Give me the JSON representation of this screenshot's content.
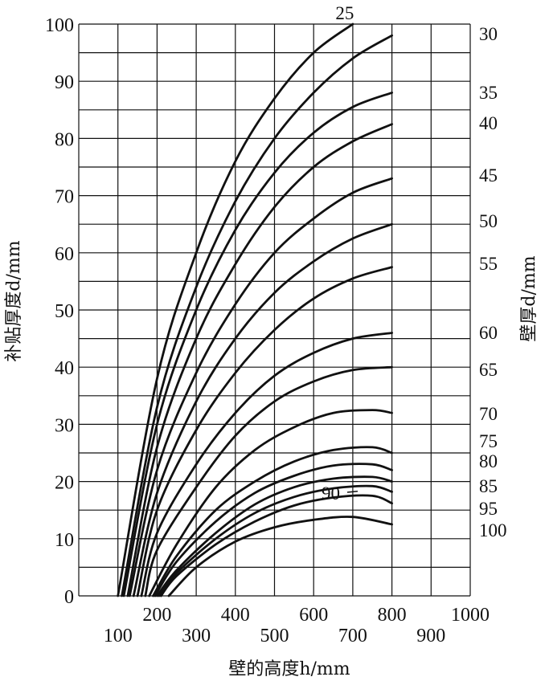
{
  "chart_data": {
    "type": "line",
    "xlabel": "壁的高度h/mm",
    "ylabel": "补贴厚度d/mm",
    "y2label": "壁厚d/mm",
    "xlim": [
      0,
      1000
    ],
    "ylim": [
      0,
      100
    ],
    "x_ticks_upper": [
      "200",
      "400",
      "600",
      "800",
      "1000"
    ],
    "x_ticks_lower": [
      "100",
      "300",
      "500",
      "700",
      "900"
    ],
    "y_ticks": [
      "0",
      "10",
      "20",
      "30",
      "40",
      "50",
      "60",
      "70",
      "80",
      "90",
      "100"
    ],
    "grid": true,
    "series": [
      {
        "name": "25",
        "points": [
          [
            100,
            0
          ],
          [
            200,
            38
          ],
          [
            300,
            60
          ],
          [
            400,
            76
          ],
          [
            500,
            87
          ],
          [
            600,
            95
          ],
          [
            700,
            100
          ]
        ]
      },
      {
        "name": "30",
        "points": [
          [
            110,
            0
          ],
          [
            200,
            33
          ],
          [
            300,
            54
          ],
          [
            400,
            69
          ],
          [
            500,
            80
          ],
          [
            600,
            88
          ],
          [
            700,
            94
          ],
          [
            800,
            98
          ]
        ]
      },
      {
        "name": "35",
        "points": [
          [
            115,
            0
          ],
          [
            200,
            30
          ],
          [
            300,
            50
          ],
          [
            400,
            64
          ],
          [
            500,
            74
          ],
          [
            600,
            81
          ],
          [
            700,
            85.5
          ],
          [
            800,
            88
          ]
        ]
      },
      {
        "name": "40",
        "points": [
          [
            125,
            0
          ],
          [
            200,
            26
          ],
          [
            300,
            45
          ],
          [
            400,
            58
          ],
          [
            500,
            68
          ],
          [
            600,
            75
          ],
          [
            700,
            79.5
          ],
          [
            800,
            82.5
          ]
        ]
      },
      {
        "name": "45",
        "points": [
          [
            130,
            0
          ],
          [
            200,
            22
          ],
          [
            300,
            39
          ],
          [
            400,
            51
          ],
          [
            500,
            60
          ],
          [
            600,
            66
          ],
          [
            700,
            70.5
          ],
          [
            800,
            73
          ]
        ]
      },
      {
        "name": "50",
        "points": [
          [
            140,
            0
          ],
          [
            200,
            18
          ],
          [
            300,
            34
          ],
          [
            400,
            45
          ],
          [
            500,
            53
          ],
          [
            600,
            58.5
          ],
          [
            700,
            62.5
          ],
          [
            800,
            65
          ]
        ]
      },
      {
        "name": "55",
        "points": [
          [
            150,
            0
          ],
          [
            200,
            15
          ],
          [
            300,
            29
          ],
          [
            400,
            39
          ],
          [
            500,
            46.5
          ],
          [
            600,
            52
          ],
          [
            700,
            55.5
          ],
          [
            800,
            57.5
          ]
        ]
      },
      {
        "name": "60",
        "points": [
          [
            160,
            0
          ],
          [
            200,
            11
          ],
          [
            300,
            23
          ],
          [
            400,
            32
          ],
          [
            500,
            38.5
          ],
          [
            600,
            42.5
          ],
          [
            700,
            45
          ],
          [
            800,
            46
          ]
        ]
      },
      {
        "name": "65",
        "points": [
          [
            170,
            0
          ],
          [
            200,
            8
          ],
          [
            300,
            19
          ],
          [
            400,
            28
          ],
          [
            500,
            34
          ],
          [
            600,
            37.5
          ],
          [
            700,
            39.5
          ],
          [
            800,
            40
          ]
        ]
      },
      {
        "name": "70",
        "points": [
          [
            180,
            0
          ],
          [
            250,
            9
          ],
          [
            350,
            19
          ],
          [
            450,
            25.5
          ],
          [
            550,
            29.5
          ],
          [
            650,
            32
          ],
          [
            750,
            32.5
          ],
          [
            800,
            32
          ]
        ]
      },
      {
        "name": "75",
        "points": [
          [
            190,
            0
          ],
          [
            250,
            7
          ],
          [
            350,
            15
          ],
          [
            450,
            20
          ],
          [
            550,
            23.5
          ],
          [
            650,
            25.5
          ],
          [
            750,
            26
          ],
          [
            800,
            25
          ]
        ]
      },
      {
        "name": "80",
        "points": [
          [
            195,
            0
          ],
          [
            250,
            6
          ],
          [
            350,
            13
          ],
          [
            450,
            18
          ],
          [
            550,
            21
          ],
          [
            650,
            22.8
          ],
          [
            750,
            23
          ],
          [
            800,
            22
          ]
        ]
      },
      {
        "name": "85",
        "points": [
          [
            200,
            0
          ],
          [
            250,
            4.5
          ],
          [
            350,
            11
          ],
          [
            450,
            16
          ],
          [
            550,
            19
          ],
          [
            650,
            20.5
          ],
          [
            750,
            20.8
          ],
          [
            800,
            20
          ]
        ]
      },
      {
        "name": "90",
        "points": [
          [
            205,
            0
          ],
          [
            250,
            4
          ],
          [
            350,
            10
          ],
          [
            450,
            14.5
          ],
          [
            550,
            17.3
          ],
          [
            650,
            18.8
          ],
          [
            750,
            19.2
          ],
          [
            800,
            18.2
          ]
        ]
      },
      {
        "name": "95",
        "points": [
          [
            210,
            0
          ],
          [
            250,
            3.5
          ],
          [
            350,
            9
          ],
          [
            450,
            13
          ],
          [
            550,
            15.8
          ],
          [
            650,
            17.2
          ],
          [
            750,
            17.5
          ],
          [
            800,
            16.2
          ]
        ]
      },
      {
        "name": "100",
        "points": [
          [
            230,
            0
          ],
          [
            300,
            5
          ],
          [
            400,
            9.5
          ],
          [
            500,
            12
          ],
          [
            600,
            13.3
          ],
          [
            700,
            13.8
          ],
          [
            800,
            12.5
          ]
        ]
      }
    ]
  }
}
